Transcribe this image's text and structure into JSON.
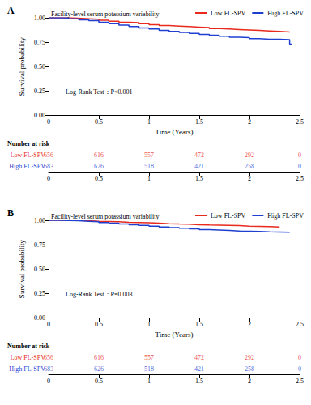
{
  "chart_data": [
    {
      "panel": "A",
      "type": "line",
      "line_style": "step",
      "legend_title": "Facility-level serum potassium variability",
      "legend": "top",
      "grid": false,
      "x_label": "Time (Years)",
      "y_label": "Survival probability",
      "annotation": "Log-Rank Test：P<0.001",
      "xlim": [
        0,
        2.5
      ],
      "xticks": [
        0,
        0.5,
        1,
        1.5,
        2,
        2.5
      ],
      "ylim": [
        0,
        1
      ],
      "yticks": [
        {
          "value": 0,
          "label": "0.00"
        },
        {
          "value": 0.25,
          "label": "0.25"
        },
        {
          "value": 0.5,
          "label": "0.50"
        },
        {
          "value": 0.75,
          "label": "0.75"
        },
        {
          "value": 1,
          "label": "1.00"
        }
      ],
      "series": [
        {
          "name": "Low FL-SPV",
          "color": "#e8291c",
          "x": [
            0,
            0.1,
            0.2,
            0.3,
            0.4,
            0.5,
            0.6,
            0.7,
            0.8,
            0.9,
            1.0,
            1.1,
            1.2,
            1.3,
            1.4,
            1.5,
            1.6,
            1.7,
            1.8,
            1.9,
            2.0,
            2.1,
            2.2,
            2.3,
            2.4
          ],
          "values": [
            1,
            1,
            0.995,
            0.99,
            0.985,
            0.975,
            0.965,
            0.955,
            0.95,
            0.94,
            0.93,
            0.92,
            0.915,
            0.91,
            0.905,
            0.9,
            0.89,
            0.885,
            0.88,
            0.875,
            0.87,
            0.865,
            0.86,
            0.855,
            0.85
          ]
        },
        {
          "name": "High FL-SPV",
          "color": "#1f3fd1",
          "x": [
            0,
            0.1,
            0.2,
            0.3,
            0.4,
            0.5,
            0.6,
            0.7,
            0.8,
            0.9,
            1.0,
            1.1,
            1.2,
            1.3,
            1.4,
            1.5,
            1.6,
            1.7,
            1.8,
            1.9,
            2.0,
            2.1,
            2.2,
            2.3,
            2.4,
            2.42
          ],
          "values": [
            1,
            0.998,
            0.99,
            0.98,
            0.97,
            0.955,
            0.94,
            0.925,
            0.91,
            0.895,
            0.885,
            0.87,
            0.86,
            0.85,
            0.84,
            0.83,
            0.82,
            0.81,
            0.8,
            0.795,
            0.785,
            0.78,
            0.78,
            0.775,
            0.73,
            0.73
          ]
        }
      ],
      "risk_table": {
        "title": "Number at risk",
        "x": [
          0,
          0.5,
          1,
          1.5,
          2,
          2.5
        ],
        "xlim": [
          0,
          2.5
        ],
        "xticks": [
          0,
          0.5,
          1,
          1.5,
          2,
          2.5
        ],
        "rows": [
          {
            "name": "Low FL-SPV",
            "values": [
              656,
              616,
              557,
              472,
              292,
              0
            ]
          },
          {
            "name": "High FL-SPV",
            "values": [
              683,
              626,
              518,
              421,
              258,
              0
            ]
          }
        ]
      }
    },
    {
      "panel": "B",
      "type": "line",
      "line_style": "step",
      "legend_title": "Facility-level serum potassium variability",
      "legend": "top",
      "grid": false,
      "x_label": "Time (Years)",
      "y_label": "Survival probability",
      "annotation": "Log-Rank Test：P=0.003",
      "xlim": [
        0,
        2.5
      ],
      "xticks": [
        0,
        0.5,
        1,
        1.5,
        2,
        2.5
      ],
      "ylim": [
        0,
        1
      ],
      "yticks": [
        {
          "value": 0,
          "label": "0.00"
        },
        {
          "value": 0.25,
          "label": "0.25"
        },
        {
          "value": 0.5,
          "label": "0.50"
        },
        {
          "value": 0.75,
          "label": "0.75"
        },
        {
          "value": 1,
          "label": "1.00"
        }
      ],
      "series": [
        {
          "name": "Low FL-SPV",
          "color": "#e8291c",
          "x": [
            0,
            0.1,
            0.2,
            0.3,
            0.4,
            0.5,
            0.6,
            0.7,
            0.8,
            0.9,
            1.0,
            1.1,
            1.2,
            1.3,
            1.4,
            1.5,
            1.6,
            1.7,
            1.8,
            1.9,
            2.0,
            2.1,
            2.2,
            2.3
          ],
          "values": [
            1,
            1,
            0.998,
            0.995,
            0.99,
            0.988,
            0.985,
            0.98,
            0.978,
            0.975,
            0.97,
            0.965,
            0.962,
            0.96,
            0.955,
            0.952,
            0.95,
            0.948,
            0.945,
            0.94,
            0.938,
            0.935,
            0.932,
            0.93
          ]
        },
        {
          "name": "High FL-SPV",
          "color": "#1f3fd1",
          "x": [
            0,
            0.1,
            0.2,
            0.3,
            0.4,
            0.5,
            0.6,
            0.7,
            0.8,
            0.9,
            1.0,
            1.1,
            1.2,
            1.3,
            1.4,
            1.5,
            1.6,
            1.7,
            1.8,
            1.9,
            2.0,
            2.1,
            2.2,
            2.3,
            2.4
          ],
          "values": [
            1,
            0.998,
            0.995,
            0.99,
            0.985,
            0.978,
            0.97,
            0.962,
            0.955,
            0.948,
            0.94,
            0.932,
            0.925,
            0.918,
            0.912,
            0.905,
            0.9,
            0.895,
            0.89,
            0.888,
            0.885,
            0.882,
            0.88,
            0.878,
            0.875
          ]
        }
      ],
      "risk_table": {
        "title": "Number at risk",
        "x": [
          0,
          0.5,
          1,
          1.5,
          2,
          2.5
        ],
        "xlim": [
          0,
          2.5
        ],
        "xticks": [
          0,
          0.5,
          1,
          1.5,
          2,
          2.5
        ],
        "rows": [
          {
            "name": "Low FL-SPV",
            "values": [
              656,
              616,
              557,
              472,
              292,
              0
            ]
          },
          {
            "name": "High FL-SPV",
            "values": [
              683,
              626,
              518,
              421,
              258,
              0
            ]
          }
        ]
      }
    }
  ]
}
